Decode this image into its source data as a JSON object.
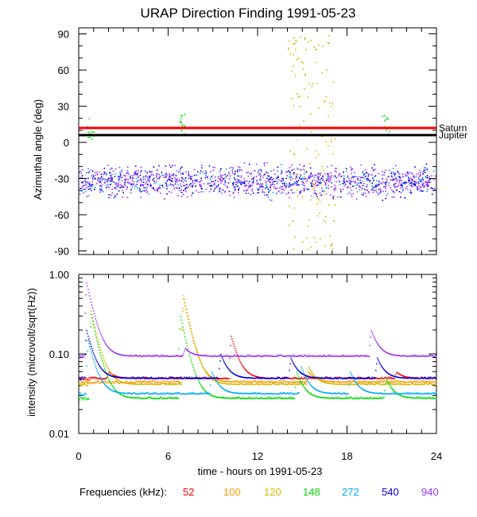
{
  "chart_data": [
    {
      "type": "scatter",
      "title": "URAP Direction Finding  1991-05-23",
      "ylabel": "Azimuthal angle (deg)",
      "ylim": [
        -93,
        95
      ],
      "xlim": [
        0,
        24
      ],
      "yticks": [
        "90",
        "60",
        "30",
        "0",
        "-30",
        "-60",
        "-90"
      ],
      "reference_lines": [
        {
          "name": "Saturn",
          "y": 12,
          "color": "#ff0000"
        },
        {
          "name": "Jupiter",
          "y": 6,
          "color": "#000000"
        }
      ],
      "series": [
        {
          "name": "main azimuth cluster (mixed frequencies)",
          "y_center": -32,
          "y_spread": 10
        },
        {
          "name": "120 kHz scattered points near 14-17 h",
          "color": "#d4b800"
        }
      ]
    },
    {
      "type": "line",
      "ylabel": "intensity (microvolt/sqrt(Hz))",
      "xlabel": "time - hours on 1991-05-23",
      "scale": "log",
      "ylim": [
        0.01,
        1.0
      ],
      "yticks": [
        "1.00",
        "0.10",
        "0.01"
      ],
      "xlim": [
        0,
        24
      ],
      "xticks": [
        "0",
        "6",
        "12",
        "18",
        "24"
      ],
      "series": [
        {
          "name": "52",
          "color": "#ff0000",
          "baseline": 0.05,
          "peaks": [
            [
              10.2,
              0.17
            ],
            [
              2.0,
              0.06
            ],
            [
              21.3,
              0.06
            ]
          ]
        },
        {
          "name": "100",
          "color": "#ff9900",
          "baseline": 0.045,
          "peaks": [
            [
              7.0,
              0.5
            ],
            [
              15.4,
              0.06
            ]
          ]
        },
        {
          "name": "120",
          "color": "#d4b800",
          "baseline": 0.042,
          "peaks": [
            [
              0.8,
              0.35
            ],
            [
              7.0,
              0.55
            ],
            [
              15.4,
              0.07
            ]
          ]
        },
        {
          "name": "148",
          "color": "#00dd00",
          "baseline": 0.028,
          "peaks": [
            [
              0.8,
              0.32
            ],
            [
              6.8,
              0.3
            ],
            [
              14.6,
              0.06
            ],
            [
              20.6,
              0.05
            ]
          ]
        },
        {
          "name": "272",
          "color": "#00aaff",
          "baseline": 0.032,
          "peaks": [
            [
              0.6,
              0.15
            ],
            [
              8.9,
              0.06
            ],
            [
              14.9,
              0.07
            ],
            [
              18.2,
              0.06
            ]
          ]
        },
        {
          "name": "540",
          "color": "#0000dd",
          "baseline": 0.05,
          "peaks": [
            [
              0.5,
              0.2
            ],
            [
              9.5,
              0.1
            ],
            [
              14.2,
              0.09
            ],
            [
              20.0,
              0.09
            ]
          ]
        },
        {
          "name": "940",
          "color": "#9933ff",
          "baseline": 0.095,
          "peaks": [
            [
              0.5,
              0.8
            ],
            [
              7.1,
              0.12
            ],
            [
              19.6,
              0.2
            ]
          ]
        }
      ]
    }
  ],
  "legend": {
    "label": "Frequencies (kHz):",
    "items": [
      {
        "text": "52",
        "color": "#ff0000"
      },
      {
        "text": "100",
        "color": "#ff9900"
      },
      {
        "text": "120",
        "color": "#d4b800"
      },
      {
        "text": "148",
        "color": "#00dd00"
      },
      {
        "text": "272",
        "color": "#00aaff"
      },
      {
        "text": "540",
        "color": "#0000dd"
      },
      {
        "text": "940",
        "color": "#9933ff"
      }
    ]
  }
}
